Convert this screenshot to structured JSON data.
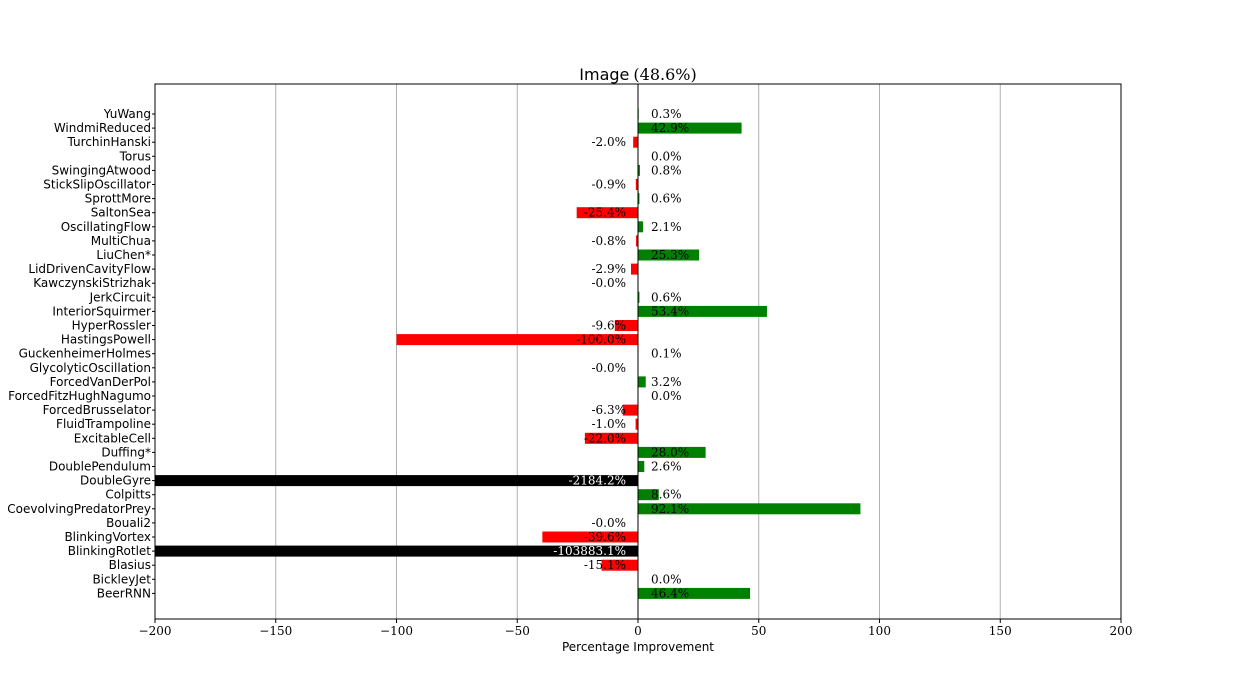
{
  "chart_data": {
    "type": "bar",
    "orientation": "horizontal",
    "title": "Image",
    "title_pct": "(48.6%)",
    "xlabel": "Percentage Improvement",
    "ylabel": "",
    "xlim": [
      -200,
      200
    ],
    "xticks": [
      -200,
      -150,
      -100,
      -50,
      0,
      50,
      100,
      150,
      200
    ],
    "xtick_labels": [
      "−200",
      "−150",
      "−100",
      "−50",
      "0",
      "50",
      "100",
      "150",
      "200"
    ],
    "grid": "vertical",
    "colors": {
      "positive": "#008000",
      "negative": "#ff0000",
      "out_of_range": "#000000",
      "grid": "#b0b0b0"
    },
    "categories": [
      "YuWang",
      "WindmiReduced",
      "TurchinHanski",
      "Torus",
      "SwingingAtwood",
      "StickSlipOscillator",
      "SprottMore",
      "SaltonSea",
      "OscillatingFlow",
      "MultiChua",
      "LiuChen*",
      "LidDrivenCavityFlow",
      "KawczynskiStrizhak",
      "JerkCircuit",
      "InteriorSquirmer",
      "HyperRossler",
      "HastingsPowell",
      "GuckenheimerHolmes",
      "GlycolyticOscillation",
      "ForcedVanDerPol",
      "ForcedFitzHughNagumo",
      "ForcedBrusselator",
      "FluidTrampoline",
      "ExcitableCell",
      "Duffing*",
      "DoublePendulum",
      "DoubleGyre",
      "Colpitts",
      "CoevolvingPredatorPrey",
      "Bouali2",
      "BlinkingVortex",
      "BlinkingRotlet",
      "Blasius",
      "BickleyJet",
      "BeerRNN"
    ],
    "values": [
      0.3,
      42.9,
      -2.0,
      0.0,
      0.8,
      -0.9,
      0.6,
      -25.4,
      2.1,
      -0.8,
      25.3,
      -2.9,
      -0.0,
      0.6,
      53.4,
      -9.6,
      -100.0,
      0.1,
      -0.0,
      3.2,
      0.0,
      -6.3,
      -1.0,
      -22.0,
      28.0,
      2.6,
      -2184.2,
      8.6,
      92.1,
      -0.0,
      -39.6,
      -103883.1,
      -15.1,
      0.0,
      46.4
    ],
    "value_labels": [
      "0.3%",
      "42.9%",
      "-2.0%",
      "0.0%",
      "0.8%",
      "-0.9%",
      "0.6%",
      "-25.4%",
      "2.1%",
      "-0.8%",
      "25.3%",
      "-2.9%",
      "-0.0%",
      "0.6%",
      "53.4%",
      "-9.6%",
      "-100.0%",
      "0.1%",
      "-0.0%",
      "3.2%",
      "0.0%",
      "-6.3%",
      "-1.0%",
      "-22.0%",
      "28.0%",
      "2.6%",
      "-2184.2%",
      "8.6%",
      "92.1%",
      "-0.0%",
      "-39.6%",
      "-103883.1%",
      "-15.1%",
      "0.0%",
      "46.4%"
    ]
  }
}
